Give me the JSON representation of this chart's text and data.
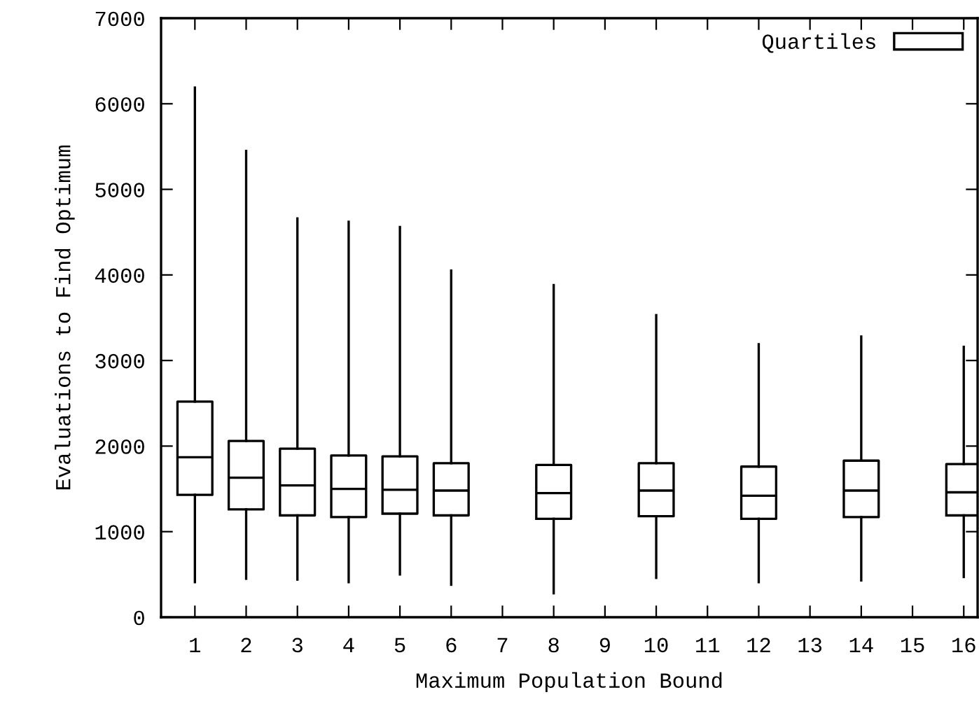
{
  "chart_data": {
    "type": "box",
    "xlabel": "Maximum Population Bound",
    "ylabel": "Evaluations to Find Optimum",
    "x": [
      1,
      2,
      3,
      4,
      5,
      6,
      8,
      10,
      12,
      14,
      16
    ],
    "series": [
      {
        "name": "Quartiles",
        "color": "#000000",
        "boxes": [
          {
            "low": 410,
            "q1": 1430,
            "median": 1870,
            "q3": 2520,
            "high": 6190
          },
          {
            "low": 450,
            "q1": 1260,
            "median": 1630,
            "q3": 2060,
            "high": 5450
          },
          {
            "low": 440,
            "q1": 1190,
            "median": 1540,
            "q3": 1970,
            "high": 4660
          },
          {
            "low": 410,
            "q1": 1170,
            "median": 1500,
            "q3": 1890,
            "high": 4620
          },
          {
            "low": 500,
            "q1": 1210,
            "median": 1490,
            "q3": 1880,
            "high": 4560
          },
          {
            "low": 380,
            "q1": 1190,
            "median": 1480,
            "q3": 1800,
            "high": 4050
          },
          {
            "low": 280,
            "q1": 1150,
            "median": 1450,
            "q3": 1780,
            "high": 3880
          },
          {
            "low": 460,
            "q1": 1180,
            "median": 1480,
            "q3": 1800,
            "high": 3530
          },
          {
            "low": 410,
            "q1": 1150,
            "median": 1420,
            "q3": 1760,
            "high": 3190
          },
          {
            "low": 430,
            "q1": 1170,
            "median": 1480,
            "q3": 1830,
            "high": 3280
          },
          {
            "low": 470,
            "q1": 1190,
            "median": 1460,
            "q3": 1790,
            "high": 3160
          }
        ]
      }
    ],
    "xlim": [
      0.34,
      16.27
    ],
    "xticks": [
      1,
      2,
      3,
      4,
      5,
      6,
      7,
      8,
      9,
      10,
      11,
      12,
      13,
      14,
      15,
      16
    ],
    "ylim": [
      0,
      7000
    ],
    "yticks": [
      0,
      1000,
      2000,
      3000,
      4000,
      5000,
      6000,
      7000
    ],
    "legend": "top right",
    "grid": false
  }
}
